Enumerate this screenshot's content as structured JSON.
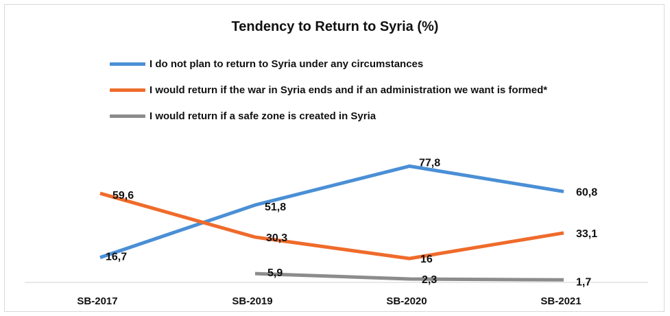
{
  "chart_data": {
    "type": "line",
    "title": "Tendency to Return to Syria (%)",
    "categories": [
      "SB-2017",
      "SB-2019",
      "SB-2020",
      "SB-2021"
    ],
    "series": [
      {
        "name": "I do not plan to return to Syria under any circumstances",
        "color": "#4a8fd6",
        "values": [
          16.7,
          51.8,
          77.8,
          60.8
        ],
        "labels": [
          "16,7",
          "51,8",
          "77,8",
          "60,8"
        ]
      },
      {
        "name": "I would return if the war in Syria ends and if an administration we want is formed*",
        "color": "#ef6b2b",
        "values": [
          59.6,
          30.3,
          16,
          33.1
        ],
        "labels": [
          "59,6",
          "30,3",
          "16",
          "33,1"
        ]
      },
      {
        "name": "I would return if a safe zone is created in Syria",
        "color": "#8c8c8c",
        "values": [
          null,
          5.9,
          2.3,
          1.7
        ],
        "labels": [
          "",
          "5,9",
          "2,3",
          "1,7"
        ]
      }
    ],
    "ylim": [
      0,
      100
    ],
    "xlabel": "",
    "ylabel": "",
    "grid": false,
    "legend_position": "top-left"
  }
}
